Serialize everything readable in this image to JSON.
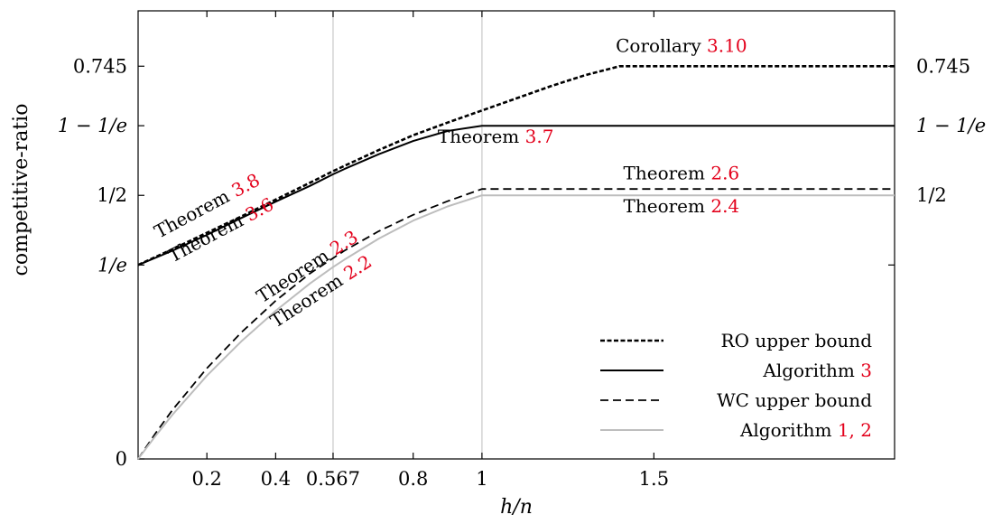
{
  "chart_data": {
    "type": "line",
    "xlabel": "h/n",
    "ylabel": "competitive-ratio",
    "xlim": [
      0,
      2.2
    ],
    "ylim": [
      0,
      0.85
    ],
    "x_ticks": [
      {
        "value": 0.2,
        "label": "0.2"
      },
      {
        "value": 0.4,
        "label": "0.4"
      },
      {
        "value": 0.567,
        "label": "0.567"
      },
      {
        "value": 0.8,
        "label": "0.8"
      },
      {
        "value": 1,
        "label": "1"
      },
      {
        "value": 1.5,
        "label": "1.5"
      }
    ],
    "y_ticks_left": [
      {
        "value": 0,
        "label": "0"
      },
      {
        "value": 0.3679,
        "label": "1/e"
      },
      {
        "value": 0.5,
        "label": "1/2"
      },
      {
        "value": 0.6321,
        "label": "1 − 1/e"
      },
      {
        "value": 0.745,
        "label": "0.745"
      }
    ],
    "y_ticks_right": [
      {
        "value": 0.3679,
        "label": ""
      },
      {
        "value": 0.5,
        "label": "1/2"
      },
      {
        "value": 0.6321,
        "label": "1 − 1/e"
      },
      {
        "value": 0.745,
        "label": "0.745"
      }
    ],
    "vertical_guides": [
      0.567,
      1
    ],
    "grid": false,
    "legend_position": "bottom-right",
    "series": [
      {
        "name": "RO upper bound",
        "style": "dotted-dense",
        "color": "#000000",
        "x": [
          0,
          0.1,
          0.2,
          0.3,
          0.4,
          0.5,
          0.567,
          0.6,
          0.7,
          0.8,
          0.9,
          1.0,
          1.1,
          1.2,
          1.3,
          1.4,
          1.6,
          1.8,
          2.0,
          2.2
        ],
        "y": [
          0.368,
          0.398,
          0.429,
          0.46,
          0.492,
          0.524,
          0.546,
          0.556,
          0.586,
          0.614,
          0.638,
          0.661,
          0.684,
          0.707,
          0.728,
          0.745,
          0.745,
          0.745,
          0.745,
          0.745
        ]
      },
      {
        "name": "Algorithm 3",
        "style": "solid",
        "color": "#000000",
        "x": [
          0,
          0.1,
          0.2,
          0.3,
          0.4,
          0.5,
          0.567,
          0.6,
          0.7,
          0.8,
          0.9,
          1.0,
          1.2,
          1.4,
          1.6,
          1.8,
          2.0,
          2.2
        ],
        "y": [
          0.368,
          0.395,
          0.425,
          0.457,
          0.488,
          0.518,
          0.54,
          0.55,
          0.578,
          0.603,
          0.622,
          0.632,
          0.632,
          0.632,
          0.632,
          0.632,
          0.632,
          0.632
        ]
      },
      {
        "name": "WC upper bound",
        "style": "dashed",
        "color": "#000000",
        "x": [
          0,
          0.05,
          0.1,
          0.2,
          0.3,
          0.4,
          0.5,
          0.567,
          0.6,
          0.7,
          0.8,
          0.9,
          1.0,
          1.2,
          1.4,
          1.6,
          1.8,
          2.0,
          2.2
        ],
        "y": [
          0.0,
          0.048,
          0.093,
          0.172,
          0.24,
          0.3,
          0.352,
          0.381,
          0.395,
          0.432,
          0.463,
          0.489,
          0.512,
          0.512,
          0.512,
          0.512,
          0.512,
          0.512,
          0.512
        ]
      },
      {
        "name": "Algorithm 1, 2",
        "style": "solid",
        "color": "#bdbdbd",
        "x": [
          0,
          0.05,
          0.1,
          0.2,
          0.3,
          0.4,
          0.5,
          0.567,
          0.6,
          0.7,
          0.8,
          0.9,
          1.0,
          1.2,
          1.4,
          1.6,
          1.8,
          2.0,
          2.2
        ],
        "y": [
          0.0,
          0.043,
          0.084,
          0.158,
          0.223,
          0.281,
          0.333,
          0.364,
          0.378,
          0.418,
          0.452,
          0.479,
          0.5,
          0.5,
          0.5,
          0.5,
          0.5,
          0.5,
          0.5
        ]
      }
    ],
    "legend": [
      {
        "series": 0,
        "text": "RO upper bound",
        "ref": ""
      },
      {
        "series": 1,
        "text": "Algorithm ",
        "ref": "3"
      },
      {
        "series": 2,
        "text": "WC upper bound",
        "ref": ""
      },
      {
        "series": 3,
        "text": "Algorithm ",
        "ref": "1, 2"
      }
    ],
    "annotations": [
      {
        "text": "Corollary ",
        "ref": "3.10",
        "x": 1.58,
        "y": 0.772,
        "angle": 0
      },
      {
        "text": "Theorem ",
        "ref": "3.7",
        "x": 1.04,
        "y": 0.6,
        "angle": 0
      },
      {
        "text": "Theorem ",
        "ref": "2.6",
        "x": 1.58,
        "y": 0.53,
        "angle": 0
      },
      {
        "text": "Theorem ",
        "ref": "2.4",
        "x": 1.58,
        "y": 0.468,
        "angle": 0
      },
      {
        "text": "Theorem ",
        "ref": "3.8",
        "x": 0.06,
        "y": 0.418,
        "angle": -28
      },
      {
        "text": "Theorem ",
        "ref": "3.6",
        "x": 0.1,
        "y": 0.372,
        "angle": -28
      },
      {
        "text": "Theorem ",
        "ref": "2.3",
        "x": 0.36,
        "y": 0.295,
        "angle": -33
      },
      {
        "text": "Theorem ",
        "ref": "2.2",
        "x": 0.4,
        "y": 0.248,
        "angle": -33
      }
    ]
  }
}
